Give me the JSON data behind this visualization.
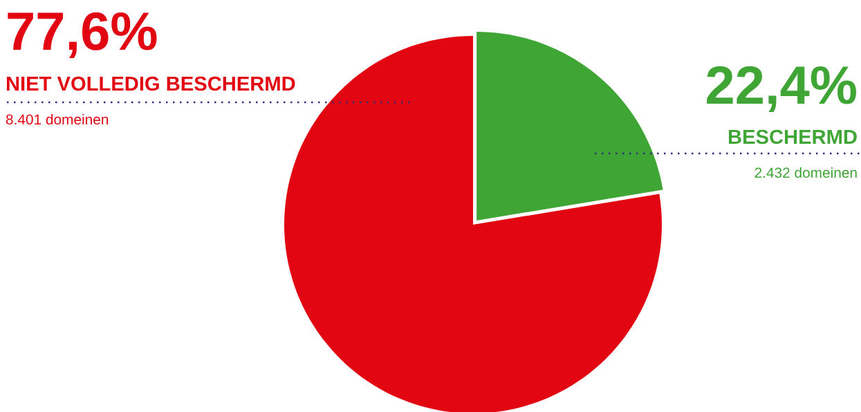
{
  "chart_data": {
    "type": "pie",
    "categories": [
      "BESCHERMD",
      "NIET VOLLEDIG BESCHERMD"
    ],
    "values": [
      22.4,
      77.6
    ],
    "colors": [
      "#3fa535",
      "#e20613"
    ],
    "value_labels": [
      "22,4%",
      "77,6%"
    ],
    "annotations": [
      "2.432 domeinen",
      "8.401 domeinen"
    ],
    "legend": false
  }
}
